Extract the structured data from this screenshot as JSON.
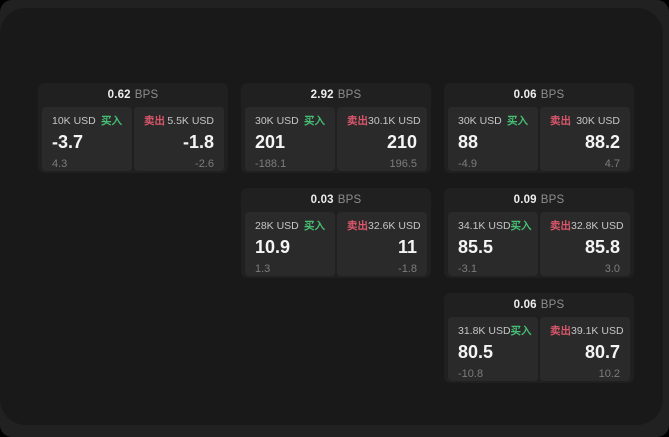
{
  "labels": {
    "bps": "BPS",
    "buy": "买入",
    "sell": "卖出"
  },
  "colors": {
    "buy_green": "#46be73",
    "sell_red": "#d9566b",
    "surface_bg": "#191919",
    "frame_bg": "#212121",
    "card_bg": "#202020",
    "panel_bg": "#2a2a2a"
  },
  "cards": [
    {
      "bps": "0.62",
      "grid": {
        "col": 1,
        "row": 1
      },
      "buy": {
        "amount": "10K USD",
        "value": "-3.7",
        "sub": "4.3"
      },
      "sell": {
        "amount": "5.5K USD",
        "value": "-1.8",
        "sub": "-2.6"
      }
    },
    {
      "bps": "2.92",
      "grid": {
        "col": 2,
        "row": 1
      },
      "buy": {
        "amount": "30K USD",
        "value": "201",
        "sub": "-188.1"
      },
      "sell": {
        "amount": "30.1K USD",
        "value": "210",
        "sub": "196.5"
      }
    },
    {
      "bps": "0.06",
      "grid": {
        "col": 3,
        "row": 1
      },
      "buy": {
        "amount": "30K USD",
        "value": "88",
        "sub": "-4.9"
      },
      "sell": {
        "amount": "30K USD",
        "value": "88.2",
        "sub": "4.7"
      }
    },
    {
      "bps": "0.03",
      "grid": {
        "col": 2,
        "row": 2
      },
      "buy": {
        "amount": "28K USD",
        "value": "10.9",
        "sub": "1.3"
      },
      "sell": {
        "amount": "32.6K USD",
        "value": "11",
        "sub": "-1.8"
      }
    },
    {
      "bps": "0.09",
      "grid": {
        "col": 3,
        "row": 2
      },
      "buy": {
        "amount": "34.1K USD",
        "value": "85.5",
        "sub": "-3.1"
      },
      "sell": {
        "amount": "32.8K USD",
        "value": "85.8",
        "sub": "3.0"
      }
    },
    {
      "bps": "0.06",
      "grid": {
        "col": 3,
        "row": 3
      },
      "buy": {
        "amount": "31.8K USD",
        "value": "80.5",
        "sub": "-10.8"
      },
      "sell": {
        "amount": "39.1K USD",
        "value": "80.7",
        "sub": "10.2"
      }
    }
  ]
}
